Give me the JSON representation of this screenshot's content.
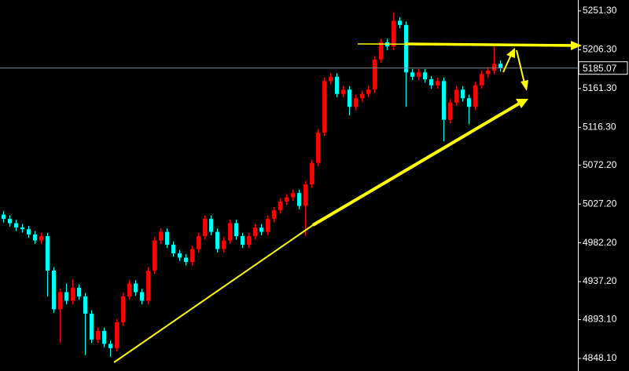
{
  "chart_data": {
    "type": "candlestick",
    "open": [
      5015,
      5010,
      5005,
      5000,
      4998,
      4992,
      4985,
      4990,
      4950,
      4905,
      4925,
      4915,
      4930,
      4920,
      4900,
      4870,
      4880,
      4865,
      4860,
      4890,
      4920,
      4935,
      4925,
      4915,
      4950,
      4985,
      4995,
      4980,
      4970,
      4965,
      4960,
      4975,
      4990,
      5010,
      4995,
      4975,
      4985,
      5005,
      4990,
      4980,
      4990,
      5000,
      4995,
      5010,
      5020,
      5030,
      5035,
      5040,
      5025,
      5050,
      5075,
      5110,
      5170,
      5175,
      5155,
      5160,
      5140,
      5150,
      5155,
      5160,
      5195,
      5215,
      5210,
      5240,
      5235,
      5180,
      5175,
      5180,
      5172,
      5165,
      5170,
      5125,
      5145,
      5160,
      5150,
      5140,
      5165,
      5178,
      5182,
      5190
    ],
    "high": [
      5019,
      5014,
      5009,
      5004,
      5002,
      4996,
      4994,
      4994,
      4954,
      4929,
      4935,
      4940,
      4934,
      4924,
      4904,
      4884,
      4884,
      4869,
      4894,
      4924,
      4939,
      4939,
      4929,
      4954,
      4989,
      4999,
      4999,
      4984,
      4974,
      4969,
      4979,
      4994,
      5014,
      5014,
      4999,
      4989,
      5009,
      5009,
      4994,
      4994,
      5004,
      5004,
      5014,
      5024,
      5034,
      5039,
      5044,
      5044,
      5054,
      5079,
      5114,
      5174,
      5179,
      5179,
      5164,
      5164,
      5154,
      5159,
      5164,
      5199,
      5219,
      5219,
      5250,
      5244,
      5239,
      5184,
      5184,
      5184,
      5176,
      5174,
      5174,
      5149,
      5164,
      5164,
      5154,
      5169,
      5182,
      5186,
      5210,
      5194
    ],
    "low": [
      5006,
      5001,
      4996,
      4994,
      4988,
      4981,
      4981,
      4920,
      4901,
      4866,
      4911,
      4911,
      4916,
      4852,
      4866,
      4866,
      4861,
      4850,
      4856,
      4886,
      4916,
      4921,
      4911,
      4911,
      4946,
      4981,
      4976,
      4966,
      4961,
      4956,
      4956,
      4971,
      4986,
      4991,
      4971,
      4971,
      4981,
      4986,
      4976,
      4976,
      4986,
      4991,
      4991,
      5006,
      5016,
      5026,
      5031,
      5021,
      4990,
      5046,
      5071,
      5106,
      5166,
      5151,
      5151,
      5130,
      5136,
      5146,
      5151,
      5156,
      5191,
      5206,
      5206,
      5231,
      5140,
      5171,
      5171,
      5168,
      5161,
      5161,
      5100,
      5121,
      5141,
      5146,
      5120,
      5136,
      5161,
      5174,
      5178,
      5181
    ],
    "close": [
      5010,
      5005,
      5000,
      4998,
      4992,
      4985,
      4990,
      4950,
      4905,
      4925,
      4915,
      4930,
      4920,
      4900,
      4870,
      4880,
      4865,
      4860,
      4890,
      4920,
      4935,
      4925,
      4915,
      4950,
      4985,
      4995,
      4980,
      4970,
      4965,
      4960,
      4975,
      4990,
      5010,
      4995,
      4975,
      4985,
      5005,
      4990,
      4980,
      4990,
      5000,
      4995,
      5010,
      5020,
      5030,
      5035,
      5040,
      5025,
      5050,
      5075,
      5110,
      5170,
      5175,
      5155,
      5160,
      5140,
      5150,
      5155,
      5160,
      5195,
      5215,
      5210,
      5240,
      5235,
      5180,
      5175,
      5180,
      5172,
      5165,
      5170,
      5125,
      5145,
      5160,
      5150,
      5140,
      5165,
      5178,
      5182,
      5190,
      5185.07
    ],
    "up_color": "#ff0000",
    "down_color": "#00ffff",
    "ylim": [
      4833.5,
      5264.0
    ],
    "yticks": [
      {
        "value": 5251.3,
        "label": "5251.30"
      },
      {
        "value": 5206.3,
        "label": "5206.30"
      },
      {
        "value": 5161.3,
        "label": "5161.30"
      },
      {
        "value": 5116.3,
        "label": "5116.30"
      },
      {
        "value": 5072.2,
        "label": "5072.20"
      },
      {
        "value": 5027.2,
        "label": "5027.20"
      },
      {
        "value": 4982.2,
        "label": "4982.20"
      },
      {
        "value": 4937.2,
        "label": "4937.20"
      },
      {
        "value": 4893.1,
        "label": "4893.10"
      },
      {
        "value": 4848.1,
        "label": "4848.10"
      }
    ],
    "current_price": 5185.07,
    "price_line_color": "#7f8c99"
  }
}
